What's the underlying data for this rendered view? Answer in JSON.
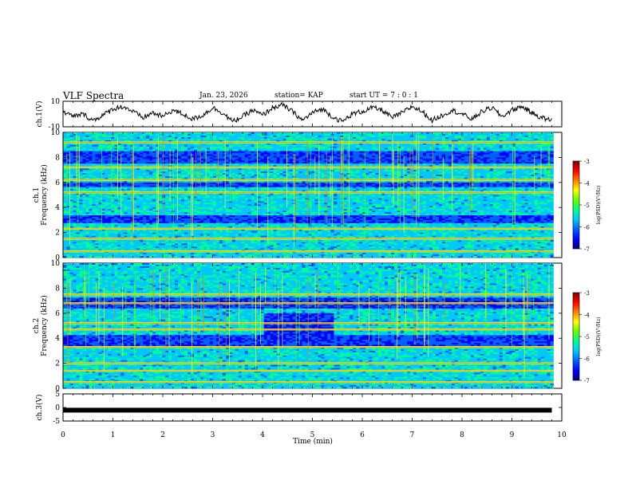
{
  "header": {
    "title": "VLF Spectra",
    "date": "Jan. 23, 2026",
    "station": "station= KAP",
    "start": "start  UT =   7 : 0  : 1"
  },
  "colors": {
    "ink": "#000000",
    "cmap": [
      "#000080",
      "#0000ff",
      "#0060ff",
      "#00c8ff",
      "#00ff90",
      "#60ff00",
      "#ffff00",
      "#ff8000",
      "#ff0000",
      "#800000"
    ]
  },
  "chart_data": [
    {
      "type": "line",
      "panel": "ch1-waveform",
      "ylabel": "ch.1(V)",
      "ylim": [
        -10,
        10
      ],
      "yticks": [
        "10",
        "-10"
      ],
      "x": [
        0,
        0.2,
        0.4,
        0.6,
        0.8,
        1.0,
        1.2,
        1.4,
        1.6,
        1.8,
        2.0,
        2.2,
        2.4,
        2.6,
        2.8,
        3.0,
        3.2,
        3.4,
        3.6,
        3.8,
        4.0,
        4.2,
        4.4,
        4.6,
        4.8,
        5.0,
        5.2,
        5.4,
        5.6,
        5.8,
        6.0,
        6.2,
        6.4,
        6.6,
        6.8,
        7.0,
        7.2,
        7.4,
        7.6,
        7.8,
        8.0,
        8.2,
        8.4,
        8.6,
        8.8,
        9.0,
        9.2,
        9.4,
        9.6,
        9.8
      ],
      "values": [
        2,
        -2,
        0,
        -5,
        -1,
        4,
        6,
        2,
        -3,
        1,
        -2,
        3,
        0,
        -4,
        -1,
        5,
        1,
        -6,
        -2,
        3,
        -1,
        5,
        7,
        2,
        -5,
        1,
        4,
        -2,
        -6,
        0,
        2,
        5,
        3,
        -3,
        1,
        6,
        2,
        -5,
        -1,
        3,
        0,
        -4,
        2,
        5,
        -2,
        3,
        6,
        1,
        -3,
        -5
      ]
    },
    {
      "type": "heatmap",
      "panel": "ch1-spectrogram",
      "ylabel": "ch.1 Frequency (kHz)",
      "ylim": [
        0,
        10
      ],
      "yticks": [
        "0",
        "2",
        "4",
        "6",
        "8",
        "10"
      ],
      "colorbar": {
        "label": "log(PSD)(V²/Hz)",
        "range": [
          -7,
          -3
        ],
        "ticks": [
          "-3",
          "-4",
          "-5",
          "-6",
          "-7"
        ]
      },
      "bands_khz": [
        0.5,
        1.5,
        2.3,
        5.2,
        6.2,
        7.2,
        9.2
      ],
      "blue_bands_khz": [
        [
          2.8,
          3.4
        ],
        [
          5.6,
          6.0
        ],
        [
          7.5,
          8.5
        ]
      ]
    },
    {
      "type": "heatmap",
      "panel": "ch2-spectrogram",
      "ylabel": "ch.2 Frequency (kHz)",
      "ylim": [
        0,
        10
      ],
      "yticks": [
        "0",
        "2",
        "4",
        "6",
        "8",
        "10"
      ],
      "colorbar": {
        "label": "log(PSD)(V²/Hz)",
        "range": [
          -7,
          -3
        ],
        "ticks": [
          "-3",
          "-4",
          "-5",
          "-6",
          "-7"
        ]
      },
      "bands_khz": [
        0.5,
        1.4,
        2.0,
        3.3,
        4.7,
        5.2,
        6.8,
        7.5
      ],
      "blue_bands_khz": [
        [
          3.4,
          4.2
        ],
        [
          6.4,
          7.2
        ]
      ],
      "quiet_block": {
        "x": [
          4.0,
          5.4
        ],
        "y_khz": [
          3.8,
          6.0
        ]
      }
    },
    {
      "type": "line",
      "panel": "ch3-signal",
      "ylabel": "ch.3(V)",
      "ylim": [
        -5,
        5
      ],
      "yticks": [
        "5",
        "0",
        "-5"
      ],
      "x": [
        0,
        9.8
      ],
      "values": [
        -1,
        -1
      ]
    }
  ],
  "xaxis": {
    "label": "Time (min)",
    "range": [
      0,
      10
    ],
    "ticks": [
      "0",
      "1",
      "2",
      "3",
      "4",
      "5",
      "6",
      "7",
      "8",
      "9",
      "10"
    ]
  }
}
